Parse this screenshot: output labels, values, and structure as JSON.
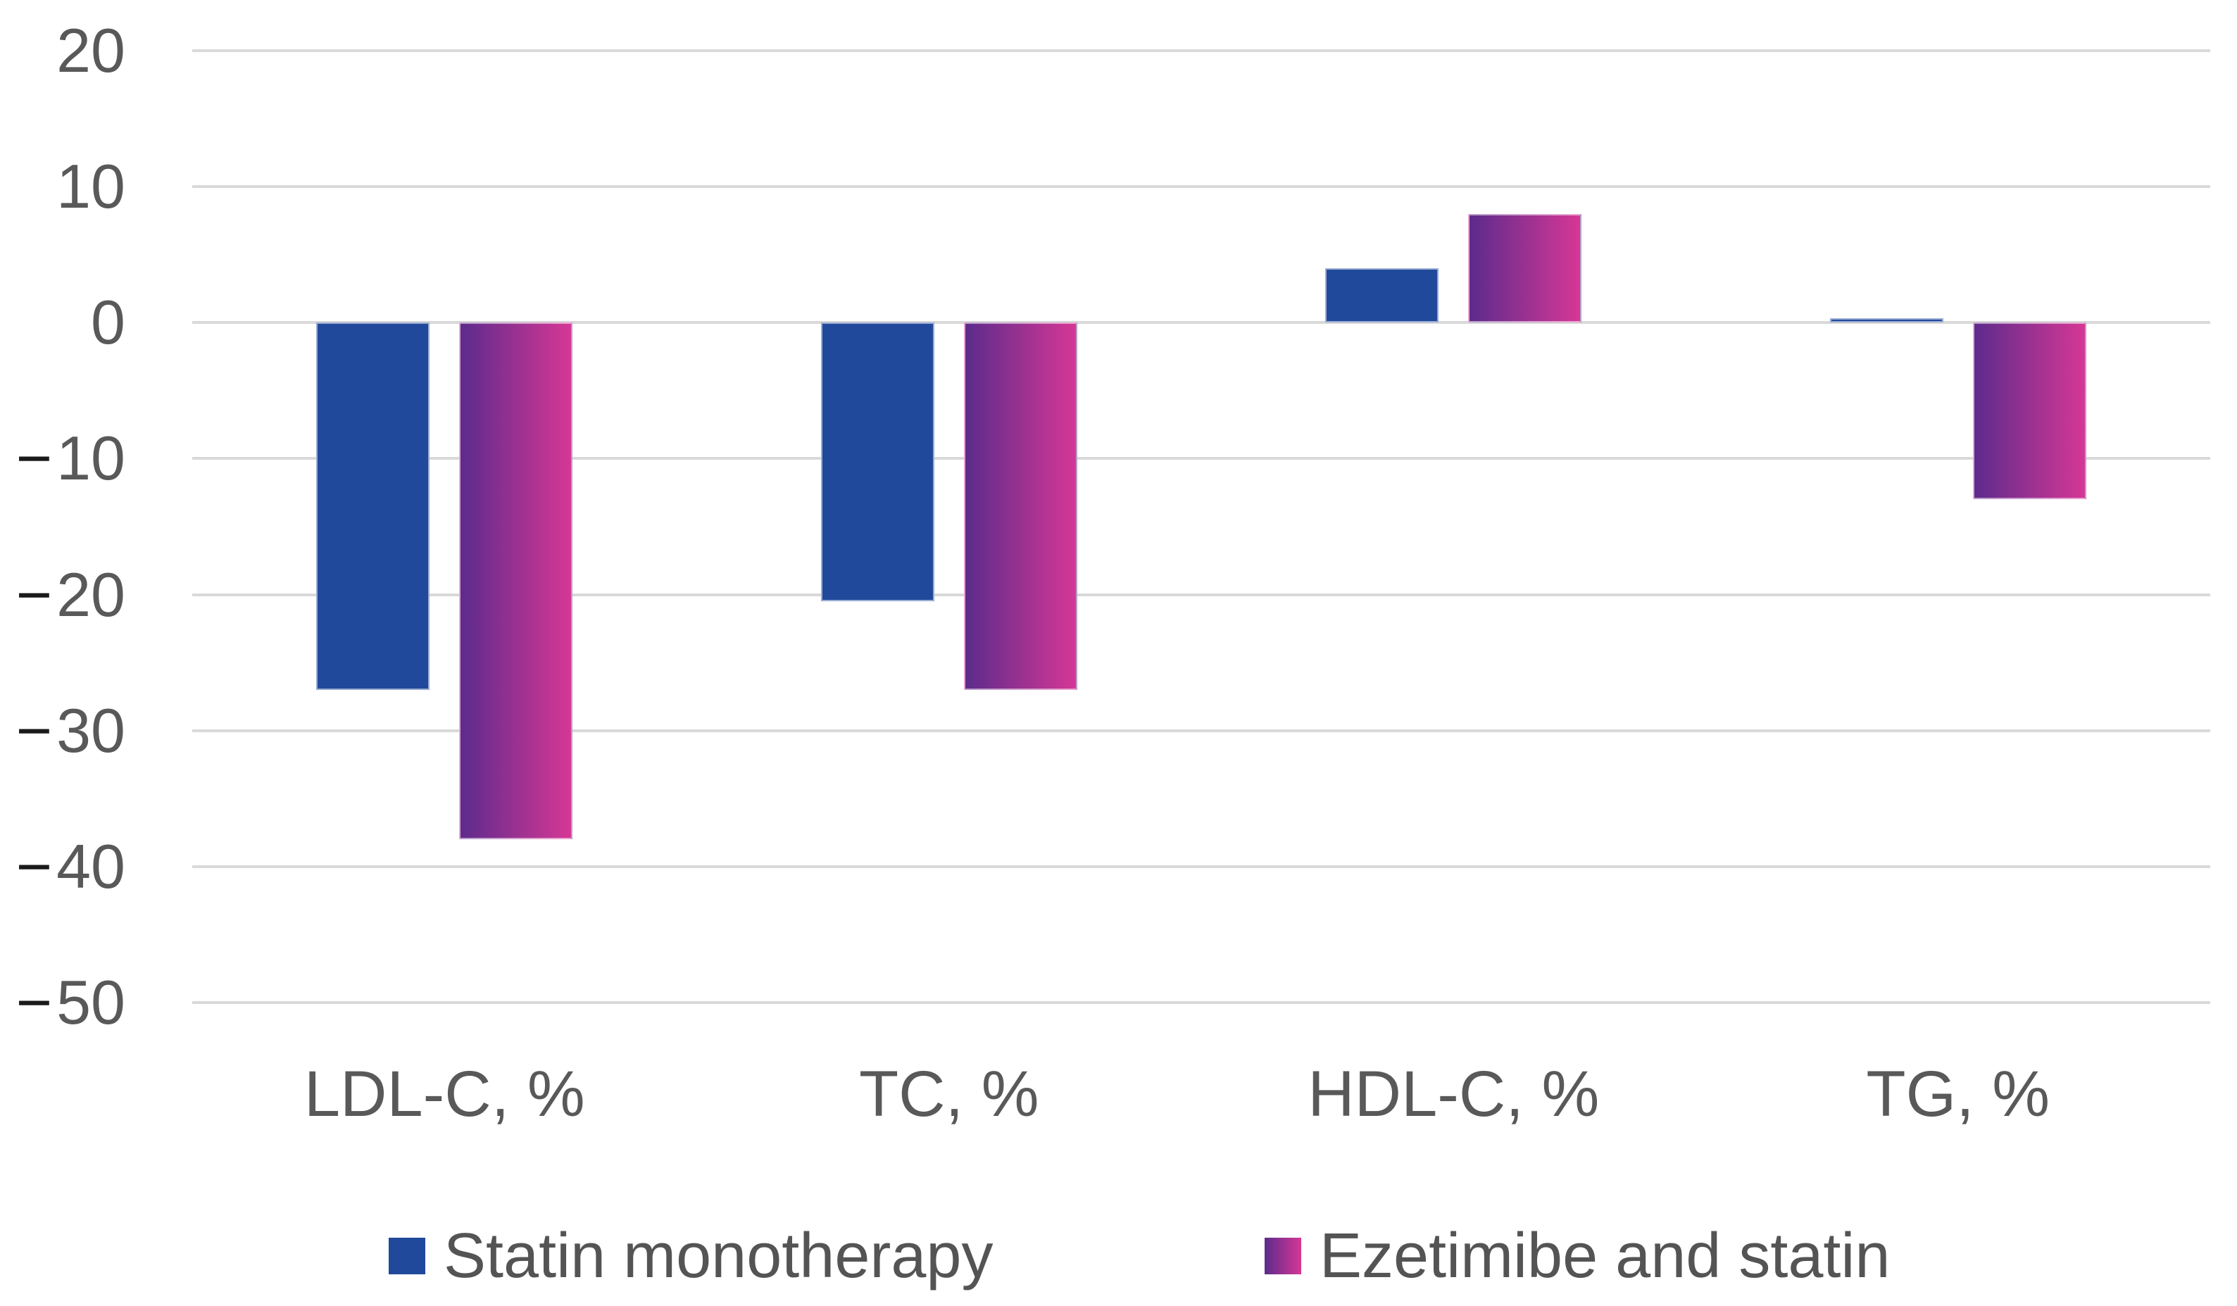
{
  "chart_data": {
    "type": "bar",
    "title": "",
    "xlabel": "",
    "ylabel": "",
    "categories": [
      "LDL-C, %",
      "TC, %",
      "HDL-C, %",
      "TG, %"
    ],
    "series": [
      {
        "name": "Statin monotherapy",
        "color": "#21499B",
        "values": [
          -27,
          -20.5,
          4,
          0.3
        ]
      },
      {
        "name": "Ezetimibe and statin",
        "gradient": [
          "#5C2B8C",
          "#D63795"
        ],
        "values": [
          -38,
          -27,
          8,
          -13
        ]
      }
    ],
    "ylim": [
      -50,
      20
    ],
    "yticks": [
      20,
      10,
      0,
      -10,
      -20,
      -30,
      -40,
      -50
    ],
    "ytick_labels": [
      "20",
      "10",
      "0",
      "−10",
      "−20",
      "−30",
      "−40",
      "−50"
    ],
    "grid": "horizontal",
    "gridline_color": "#D9D9D9",
    "axis_text_color": "#595959",
    "minus_sign_color": "#1A1A1A",
    "legend_position": "bottom"
  }
}
